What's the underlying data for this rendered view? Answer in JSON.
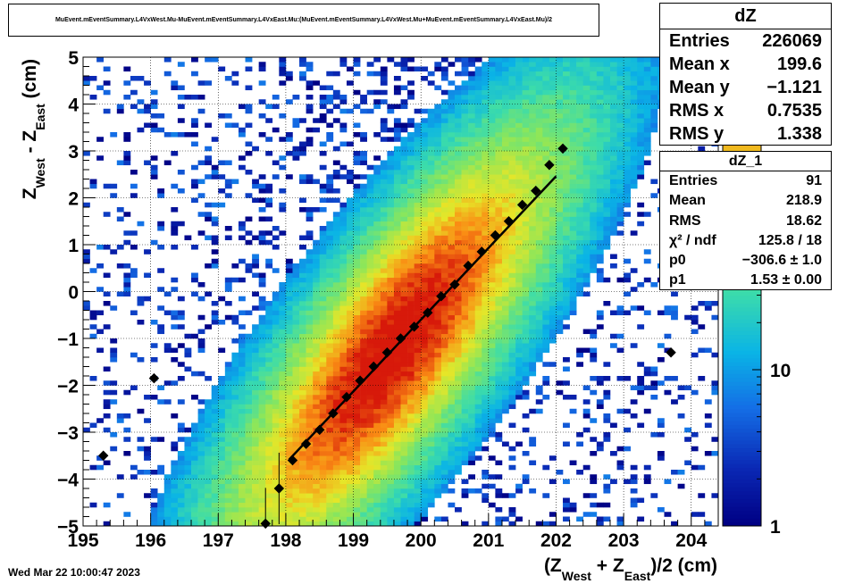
{
  "title": "MuEvent.mEventSummary.L4VxWest.Mu-MuEvent.mEventSummary.L4VxEast.Mu:(MuEvent.mEventSummary.L4VxWest.Mu+MuEvent.mEventSummary.L4VxEast.Mu)/2",
  "timestamp": "Wed Mar 22 10:00:47 2023",
  "stats_dz": {
    "name": "dZ",
    "rows": [
      {
        "label": "Entries",
        "value": "226069"
      },
      {
        "label": "Mean x",
        "value": "199.6"
      },
      {
        "label": "Mean y",
        "value": "−1.121"
      },
      {
        "label": "RMS x",
        "value": "0.7535"
      },
      {
        "label": "RMS y",
        "value": "1.338"
      }
    ]
  },
  "stats_dz1": {
    "name": "dZ_1",
    "rows": [
      {
        "label": "Entries",
        "value": "91"
      },
      {
        "label": "Mean",
        "value": "218.9"
      },
      {
        "label": "RMS",
        "value": "18.62"
      },
      {
        "label": "χ² / ndf",
        "value": "125.8 / 18"
      },
      {
        "label": "p0",
        "value": "−306.6 ± 1.0"
      },
      {
        "label": "p1",
        "value": "1.53 ± 0.00"
      }
    ]
  },
  "chart_data": {
    "type": "heatmap",
    "xlim": [
      195,
      204.4
    ],
    "ylim": [
      -5,
      5
    ],
    "x_ticks": [
      "195",
      "196",
      "197",
      "198",
      "199",
      "200",
      "201",
      "202",
      "203",
      "204"
    ],
    "y_ticks": [
      "−5",
      "−4",
      "−3",
      "−2",
      "−1",
      "0",
      "1",
      "2",
      "3",
      "4",
      "5"
    ],
    "xlabel": {
      "base": "(Z",
      "sub1": "West",
      "mid": " + Z",
      "sub2": "East",
      "end": ")/2 (cm)"
    },
    "ylabel": {
      "base": "Z",
      "sub1": "West",
      "mid": " - Z",
      "sub2": "East",
      "end": " (cm)"
    },
    "grid": true,
    "log_z": true,
    "z_ticks": [
      "1",
      "10"
    ],
    "density": {
      "mean_x": 199.6,
      "mean_y": -1.121,
      "rms_x": 0.7535,
      "rms_y": 1.338,
      "slope": 1.53,
      "intercept": -306.6
    },
    "fit_line": {
      "x_range": [
        198.05,
        202.0
      ],
      "p0": -306.6,
      "p1": 1.53
    },
    "profile_points": [
      {
        "x": 195.3,
        "y": -3.5
      },
      {
        "x": 196.05,
        "y": -1.85
      },
      {
        "x": 197.7,
        "y": -4.95
      },
      {
        "x": 197.9,
        "y": -4.2
      },
      {
        "x": 198.1,
        "y": -3.6
      },
      {
        "x": 198.3,
        "y": -3.25
      },
      {
        "x": 198.5,
        "y": -2.95
      },
      {
        "x": 198.7,
        "y": -2.6
      },
      {
        "x": 198.9,
        "y": -2.25
      },
      {
        "x": 199.1,
        "y": -1.9
      },
      {
        "x": 199.3,
        "y": -1.6
      },
      {
        "x": 199.5,
        "y": -1.3
      },
      {
        "x": 199.7,
        "y": -1.0
      },
      {
        "x": 199.9,
        "y": -0.75
      },
      {
        "x": 200.1,
        "y": -0.45
      },
      {
        "x": 200.3,
        "y": -0.1
      },
      {
        "x": 200.5,
        "y": 0.15
      },
      {
        "x": 200.7,
        "y": 0.55
      },
      {
        "x": 200.9,
        "y": 0.85
      },
      {
        "x": 201.1,
        "y": 1.2
      },
      {
        "x": 201.3,
        "y": 1.5
      },
      {
        "x": 201.5,
        "y": 1.85
      },
      {
        "x": 201.7,
        "y": 2.15
      },
      {
        "x": 201.9,
        "y": 2.7
      },
      {
        "x": 202.1,
        "y": 3.05
      },
      {
        "x": 203.7,
        "y": -1.3
      }
    ]
  },
  "colors": {
    "fit": "#000000",
    "marker": "#000000"
  }
}
